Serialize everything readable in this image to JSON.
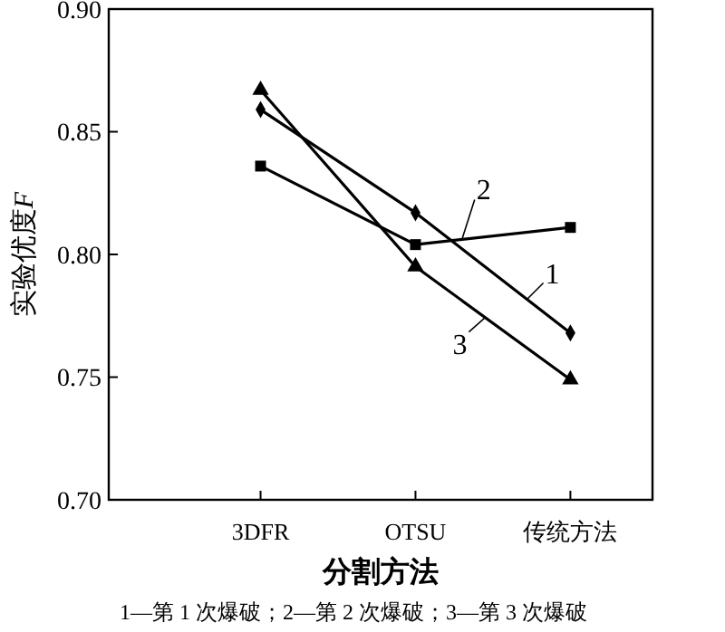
{
  "chart_data": {
    "type": "line",
    "xlabel": "分割方法",
    "ylabel": "实验优度F",
    "categories": [
      "3DFR",
      "OTSU",
      "传统方法"
    ],
    "ylim": [
      0.7,
      0.9
    ],
    "yticks": [
      {
        "value": 0.7,
        "label": "0.70"
      },
      {
        "value": 0.75,
        "label": "0.75"
      },
      {
        "value": 0.8,
        "label": "0.80"
      },
      {
        "value": 0.85,
        "label": "0.85"
      },
      {
        "value": 0.9,
        "label": "0.90"
      }
    ],
    "grid": false,
    "line_style": "solid",
    "series": [
      {
        "name": "1",
        "color": "#000000",
        "marker": "diamond",
        "values": [
          0.859,
          0.817,
          0.768
        ]
      },
      {
        "name": "2",
        "color": "#000000",
        "marker": "square",
        "values": [
          0.836,
          0.804,
          0.811
        ]
      },
      {
        "name": "3",
        "color": "#000000",
        "marker": "triangle",
        "values": [
          0.867,
          0.795,
          0.749
        ]
      }
    ],
    "annotations": [
      "1—第 1 次爆破；2—第 2 次爆破；3—第 3 次爆破"
    ]
  }
}
